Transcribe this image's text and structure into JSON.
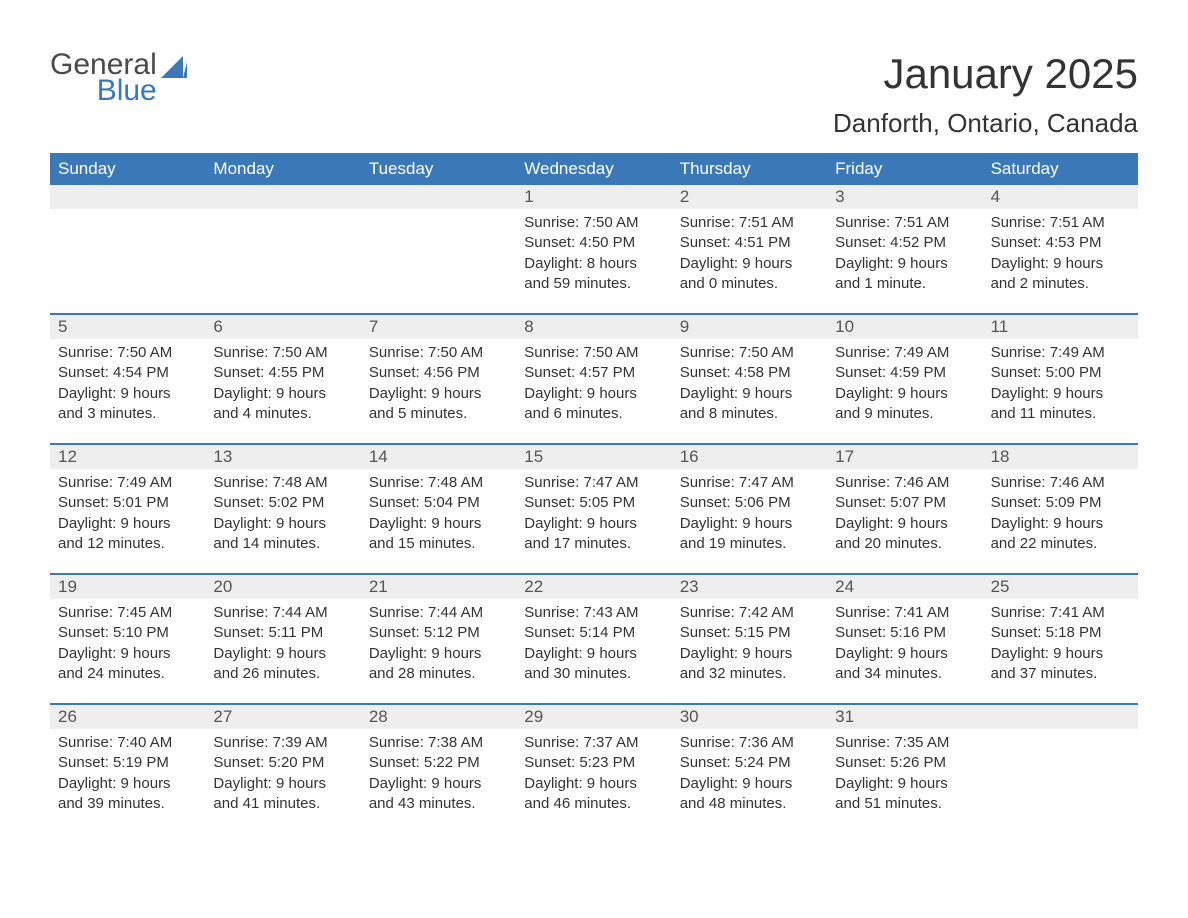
{
  "logo": {
    "general": "General",
    "blue": "Blue"
  },
  "title": "January 2025",
  "location": "Danforth, Ontario, Canada",
  "colors": {
    "header_bg": "#3a78b8",
    "header_text": "#ffffff",
    "daynum_bg": "#eeeeee",
    "daynum_text": "#555555",
    "body_text": "#333333",
    "rule": "#3a78b8",
    "page_bg": "#ffffff"
  },
  "weekdays": [
    "Sunday",
    "Monday",
    "Tuesday",
    "Wednesday",
    "Thursday",
    "Friday",
    "Saturday"
  ],
  "weeks": [
    [
      {
        "day": null
      },
      {
        "day": null
      },
      {
        "day": null
      },
      {
        "day": "1",
        "sunrise": "Sunrise: 7:50 AM",
        "sunset": "Sunset: 4:50 PM",
        "daylight1": "Daylight: 8 hours",
        "daylight2": "and 59 minutes."
      },
      {
        "day": "2",
        "sunrise": "Sunrise: 7:51 AM",
        "sunset": "Sunset: 4:51 PM",
        "daylight1": "Daylight: 9 hours",
        "daylight2": "and 0 minutes."
      },
      {
        "day": "3",
        "sunrise": "Sunrise: 7:51 AM",
        "sunset": "Sunset: 4:52 PM",
        "daylight1": "Daylight: 9 hours",
        "daylight2": "and 1 minute."
      },
      {
        "day": "4",
        "sunrise": "Sunrise: 7:51 AM",
        "sunset": "Sunset: 4:53 PM",
        "daylight1": "Daylight: 9 hours",
        "daylight2": "and 2 minutes."
      }
    ],
    [
      {
        "day": "5",
        "sunrise": "Sunrise: 7:50 AM",
        "sunset": "Sunset: 4:54 PM",
        "daylight1": "Daylight: 9 hours",
        "daylight2": "and 3 minutes."
      },
      {
        "day": "6",
        "sunrise": "Sunrise: 7:50 AM",
        "sunset": "Sunset: 4:55 PM",
        "daylight1": "Daylight: 9 hours",
        "daylight2": "and 4 minutes."
      },
      {
        "day": "7",
        "sunrise": "Sunrise: 7:50 AM",
        "sunset": "Sunset: 4:56 PM",
        "daylight1": "Daylight: 9 hours",
        "daylight2": "and 5 minutes."
      },
      {
        "day": "8",
        "sunrise": "Sunrise: 7:50 AM",
        "sunset": "Sunset: 4:57 PM",
        "daylight1": "Daylight: 9 hours",
        "daylight2": "and 6 minutes."
      },
      {
        "day": "9",
        "sunrise": "Sunrise: 7:50 AM",
        "sunset": "Sunset: 4:58 PM",
        "daylight1": "Daylight: 9 hours",
        "daylight2": "and 8 minutes."
      },
      {
        "day": "10",
        "sunrise": "Sunrise: 7:49 AM",
        "sunset": "Sunset: 4:59 PM",
        "daylight1": "Daylight: 9 hours",
        "daylight2": "and 9 minutes."
      },
      {
        "day": "11",
        "sunrise": "Sunrise: 7:49 AM",
        "sunset": "Sunset: 5:00 PM",
        "daylight1": "Daylight: 9 hours",
        "daylight2": "and 11 minutes."
      }
    ],
    [
      {
        "day": "12",
        "sunrise": "Sunrise: 7:49 AM",
        "sunset": "Sunset: 5:01 PM",
        "daylight1": "Daylight: 9 hours",
        "daylight2": "and 12 minutes."
      },
      {
        "day": "13",
        "sunrise": "Sunrise: 7:48 AM",
        "sunset": "Sunset: 5:02 PM",
        "daylight1": "Daylight: 9 hours",
        "daylight2": "and 14 minutes."
      },
      {
        "day": "14",
        "sunrise": "Sunrise: 7:48 AM",
        "sunset": "Sunset: 5:04 PM",
        "daylight1": "Daylight: 9 hours",
        "daylight2": "and 15 minutes."
      },
      {
        "day": "15",
        "sunrise": "Sunrise: 7:47 AM",
        "sunset": "Sunset: 5:05 PM",
        "daylight1": "Daylight: 9 hours",
        "daylight2": "and 17 minutes."
      },
      {
        "day": "16",
        "sunrise": "Sunrise: 7:47 AM",
        "sunset": "Sunset: 5:06 PM",
        "daylight1": "Daylight: 9 hours",
        "daylight2": "and 19 minutes."
      },
      {
        "day": "17",
        "sunrise": "Sunrise: 7:46 AM",
        "sunset": "Sunset: 5:07 PM",
        "daylight1": "Daylight: 9 hours",
        "daylight2": "and 20 minutes."
      },
      {
        "day": "18",
        "sunrise": "Sunrise: 7:46 AM",
        "sunset": "Sunset: 5:09 PM",
        "daylight1": "Daylight: 9 hours",
        "daylight2": "and 22 minutes."
      }
    ],
    [
      {
        "day": "19",
        "sunrise": "Sunrise: 7:45 AM",
        "sunset": "Sunset: 5:10 PM",
        "daylight1": "Daylight: 9 hours",
        "daylight2": "and 24 minutes."
      },
      {
        "day": "20",
        "sunrise": "Sunrise: 7:44 AM",
        "sunset": "Sunset: 5:11 PM",
        "daylight1": "Daylight: 9 hours",
        "daylight2": "and 26 minutes."
      },
      {
        "day": "21",
        "sunrise": "Sunrise: 7:44 AM",
        "sunset": "Sunset: 5:12 PM",
        "daylight1": "Daylight: 9 hours",
        "daylight2": "and 28 minutes."
      },
      {
        "day": "22",
        "sunrise": "Sunrise: 7:43 AM",
        "sunset": "Sunset: 5:14 PM",
        "daylight1": "Daylight: 9 hours",
        "daylight2": "and 30 minutes."
      },
      {
        "day": "23",
        "sunrise": "Sunrise: 7:42 AM",
        "sunset": "Sunset: 5:15 PM",
        "daylight1": "Daylight: 9 hours",
        "daylight2": "and 32 minutes."
      },
      {
        "day": "24",
        "sunrise": "Sunrise: 7:41 AM",
        "sunset": "Sunset: 5:16 PM",
        "daylight1": "Daylight: 9 hours",
        "daylight2": "and 34 minutes."
      },
      {
        "day": "25",
        "sunrise": "Sunrise: 7:41 AM",
        "sunset": "Sunset: 5:18 PM",
        "daylight1": "Daylight: 9 hours",
        "daylight2": "and 37 minutes."
      }
    ],
    [
      {
        "day": "26",
        "sunrise": "Sunrise: 7:40 AM",
        "sunset": "Sunset: 5:19 PM",
        "daylight1": "Daylight: 9 hours",
        "daylight2": "and 39 minutes."
      },
      {
        "day": "27",
        "sunrise": "Sunrise: 7:39 AM",
        "sunset": "Sunset: 5:20 PM",
        "daylight1": "Daylight: 9 hours",
        "daylight2": "and 41 minutes."
      },
      {
        "day": "28",
        "sunrise": "Sunrise: 7:38 AM",
        "sunset": "Sunset: 5:22 PM",
        "daylight1": "Daylight: 9 hours",
        "daylight2": "and 43 minutes."
      },
      {
        "day": "29",
        "sunrise": "Sunrise: 7:37 AM",
        "sunset": "Sunset: 5:23 PM",
        "daylight1": "Daylight: 9 hours",
        "daylight2": "and 46 minutes."
      },
      {
        "day": "30",
        "sunrise": "Sunrise: 7:36 AM",
        "sunset": "Sunset: 5:24 PM",
        "daylight1": "Daylight: 9 hours",
        "daylight2": "and 48 minutes."
      },
      {
        "day": "31",
        "sunrise": "Sunrise: 7:35 AM",
        "sunset": "Sunset: 5:26 PM",
        "daylight1": "Daylight: 9 hours",
        "daylight2": "and 51 minutes."
      },
      {
        "day": null
      }
    ]
  ]
}
